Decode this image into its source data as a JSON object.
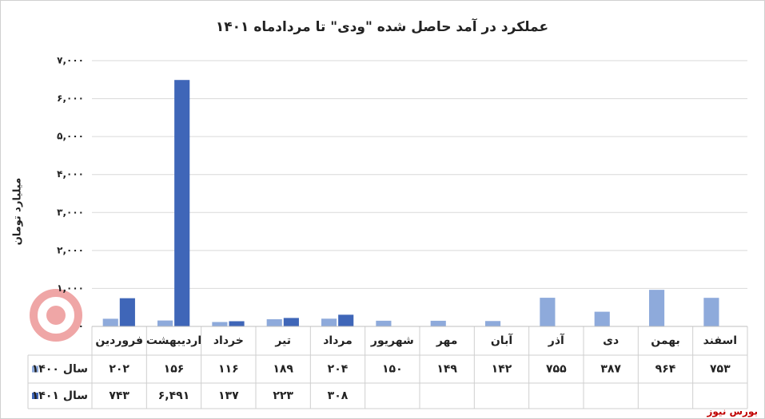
{
  "chart_data": {
    "type": "bar",
    "title": "عملکرد در آمد حاصل شده \"ودی\" تا مردادماه ۱۴۰۱",
    "y_label": "میلیارد تومان",
    "watermark": "بورس نیوز",
    "categories": [
      "فروردین",
      "اردیبهشت",
      "خرداد",
      "تیر",
      "مرداد",
      "شهریور",
      "مهر",
      "آبان",
      "آذر",
      "دی",
      "بهمن",
      "اسفند"
    ],
    "series": [
      {
        "name": "سال ۱۴۰۰",
        "color": "#8eaadb",
        "values": [
          202,
          156,
          116,
          189,
          204,
          150,
          149,
          142,
          755,
          387,
          964,
          753
        ],
        "value_labels": [
          "۲۰۲",
          "۱۵۶",
          "۱۱۶",
          "۱۸۹",
          "۲۰۴",
          "۱۵۰",
          "۱۴۹",
          "۱۴۲",
          "۷۵۵",
          "۳۸۷",
          "۹۶۴",
          "۷۵۳"
        ]
      },
      {
        "name": "سال ۱۴۰۱",
        "color": "#3f66b8",
        "values": [
          743,
          6491,
          137,
          223,
          308,
          null,
          null,
          null,
          null,
          null,
          null,
          null
        ],
        "value_labels": [
          "۷۴۳",
          "۶,۴۹۱",
          "۱۳۷",
          "۲۲۳",
          "۳۰۸",
          null,
          null,
          null,
          null,
          null,
          null,
          null
        ]
      }
    ],
    "ylim": [
      0,
      7000
    ],
    "yticks": [
      {
        "value": 0,
        "label": "۰"
      },
      {
        "value": 1000,
        "label": "۱,۰۰۰"
      },
      {
        "value": 2000,
        "label": "۲,۰۰۰"
      },
      {
        "value": 3000,
        "label": "۳,۰۰۰"
      },
      {
        "value": 4000,
        "label": "۴,۰۰۰"
      },
      {
        "value": 5000,
        "label": "۵,۰۰۰"
      },
      {
        "value": 6000,
        "label": "۶,۰۰۰"
      },
      {
        "value": 7000,
        "label": "۷,۰۰۰"
      }
    ],
    "grid": true
  }
}
